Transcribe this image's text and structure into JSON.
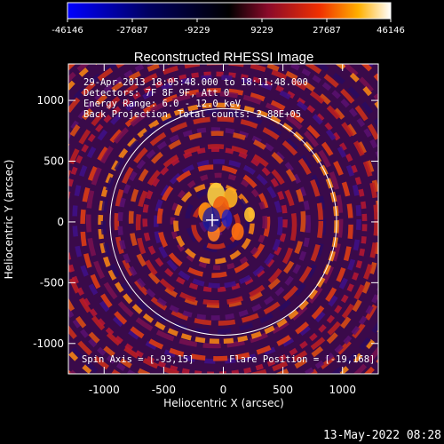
{
  "colorbar": {
    "ticks": [
      "-46146",
      "-27687",
      "-9229",
      "9229",
      "27687",
      "46146"
    ],
    "min": -46146,
    "max": 46146
  },
  "chart_data": {
    "type": "heatmap",
    "title": "Reconstructed RHESSI Image",
    "xlabel": "Heliocentric X (arcsec)",
    "ylabel": "Heliocentric Y (arcsec)",
    "xlim": [
      -1300,
      1300
    ],
    "ylim": [
      -1250,
      1300
    ],
    "xticks": [
      "-1000",
      "-500",
      "0",
      "500",
      "1000"
    ],
    "yticks": [
      "1000",
      "500",
      "0",
      "-500",
      "-1000"
    ],
    "solar_limb_radius_arcsec": 950,
    "flare_marker": [
      -19,
      168
    ],
    "annotations": {
      "time": "29-Apr-2013 18:05:48.000 to 18:11:48.000",
      "detectors": "Detectors: 7F 8F 9F, Att 0",
      "energy": "Energy Range: 6.0 - 12.0 keV",
      "method": "Back Projection",
      "counts": "Total counts: 2.88E+05",
      "spin_axis": "Spin Axis = [-93,15]",
      "flare_position": "Flare Position = [-19,168]"
    }
  },
  "footer": {
    "timestamp": "13-May-2022 08:28"
  }
}
